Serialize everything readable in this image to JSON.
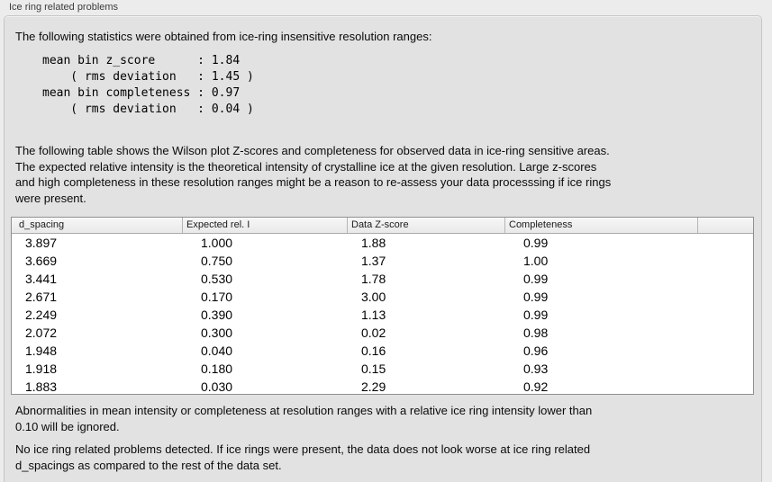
{
  "panel": {
    "title": "Ice ring related problems",
    "intro": "The following statistics were obtained from ice-ring insensitive resolution ranges:",
    "stats_block": "mean bin z_score      : 1.84\n    ( rms deviation   : 1.45 )\nmean bin completeness : 0.97\n    ( rms deviation   : 0.04 )",
    "stats": {
      "mean_bin_z_score": "1.84",
      "z_score_rms_deviation": "1.45",
      "mean_bin_completeness": "0.97",
      "completeness_rms_deviation": "0.04"
    },
    "table_description": "The following table shows the Wilson plot Z-scores and completeness for observed data in ice-ring sensitive areas.\nThe expected relative intensity is the theoretical intensity of crystalline ice at the given resolution. Large z-scores\nand high completeness in these resolution ranges might be a reason to re-assess your data processsing if ice rings\nwere present.",
    "note_ignore": "Abnormalities in mean intensity or completeness at resolution ranges with a relative ice ring intensity lower than\n0.10 will be ignored.",
    "conclusion": "No ice ring related problems detected. If ice rings were present, the data does not look worse at ice ring related\nd_spacings as compared to the rest of the data set."
  },
  "table": {
    "columns": [
      "d_spacing",
      "Expected rel. I",
      "Data Z-score",
      "Completeness",
      ""
    ],
    "rows": [
      [
        "3.897",
        "1.000",
        "1.88",
        "0.99"
      ],
      [
        "3.669",
        "0.750",
        "1.37",
        "1.00"
      ],
      [
        "3.441",
        "0.530",
        "1.78",
        "0.99"
      ],
      [
        "2.671",
        "0.170",
        "3.00",
        "0.99"
      ],
      [
        "2.249",
        "0.390",
        "1.13",
        "0.99"
      ],
      [
        "2.072",
        "0.300",
        "0.02",
        "0.98"
      ],
      [
        "1.948",
        "0.040",
        "0.16",
        "0.96"
      ],
      [
        "1.918",
        "0.180",
        "0.15",
        "0.93"
      ],
      [
        "1.883",
        "0.030",
        "2.29",
        "0.92"
      ]
    ]
  },
  "colors": {
    "outer_background": "#ececec",
    "groupbox_background": "#e2e2e2",
    "groupbox_border": "#c6c6c6",
    "table_border": "#8f8f8f",
    "table_header_background": "#f0f0f0",
    "table_body_background": "#ffffff",
    "text": "#000000"
  }
}
